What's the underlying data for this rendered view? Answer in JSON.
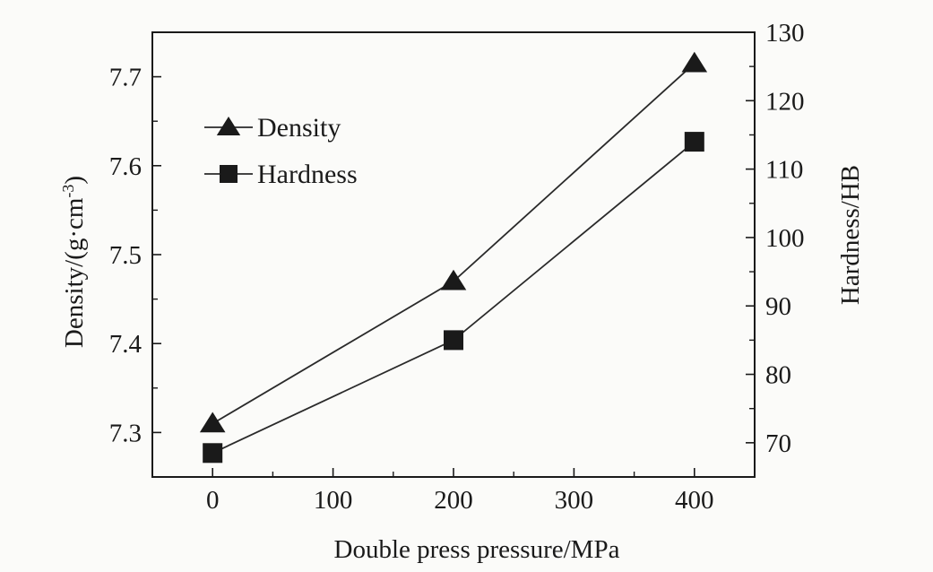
{
  "chart_data": {
    "type": "line",
    "xlabel": "Double press pressure/MPa",
    "ylabel_left": "Density/(g·cm",
    "ylabel_left_sup": "-3",
    "ylabel_left_suffix": ")",
    "ylabel_right": "Hardness/HB",
    "xlim": [
      -50,
      450
    ],
    "ylim_left": [
      7.25,
      7.75
    ],
    "ylim_right": [
      65,
      130
    ],
    "x_ticks": [
      0,
      100,
      200,
      300,
      400
    ],
    "x_tick_labels": [
      "0",
      "100",
      "200",
      "300",
      "400"
    ],
    "y_left_ticks": [
      7.3,
      7.4,
      7.5,
      7.6,
      7.7
    ],
    "y_left_tick_labels": [
      "7.3",
      "7.4",
      "7.5",
      "7.6",
      "7.7"
    ],
    "y_right_ticks": [
      70,
      80,
      90,
      100,
      110,
      120,
      130
    ],
    "y_right_tick_labels": [
      "70",
      "80",
      "90",
      "100",
      "110",
      "120",
      "130"
    ],
    "legend_position": "upper-left",
    "grid": false,
    "series": [
      {
        "name": "Density",
        "axis": "left",
        "marker": "triangle",
        "x": [
          0,
          200,
          400
        ],
        "values": [
          7.31,
          7.47,
          7.715
        ]
      },
      {
        "name": "Hardness",
        "axis": "right",
        "marker": "square",
        "x": [
          0,
          200,
          400
        ],
        "values": [
          68.5,
          85,
          114
        ]
      }
    ],
    "colors": {
      "line": "#2a2a2a",
      "marker": "#1a1a1a",
      "axis": "#1a1a1a"
    }
  }
}
